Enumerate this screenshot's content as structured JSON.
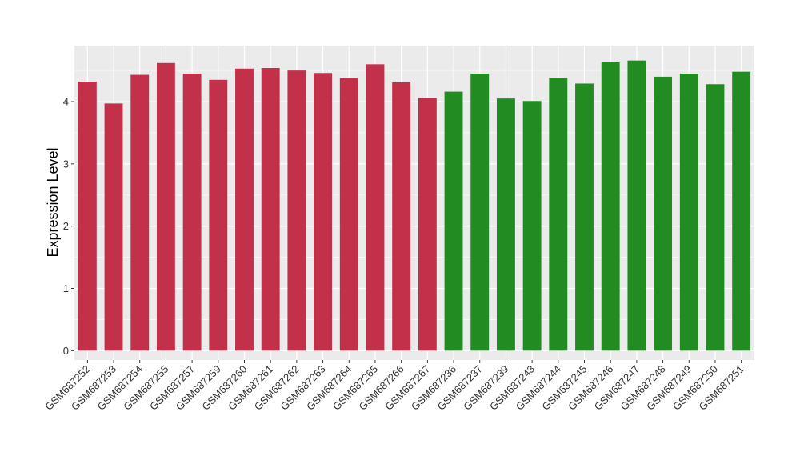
{
  "chart_data": {
    "type": "bar",
    "title": "",
    "xlabel": "",
    "ylabel": "Expression Level",
    "ylim": [
      -0.15,
      4.9
    ],
    "yticks": [
      0,
      1,
      2,
      3,
      4
    ],
    "grid": true,
    "legend": "none",
    "colors": {
      "group1": "#C3304A",
      "group2": "#228B22",
      "panel": "#EBEBEB",
      "grid": "#FFFFFF"
    },
    "categories": [
      "GSM687252",
      "GSM687253",
      "GSM687254",
      "GSM687255",
      "GSM687257",
      "GSM687259",
      "GSM687260",
      "GSM687261",
      "GSM687262",
      "GSM687263",
      "GSM687264",
      "GSM687265",
      "GSM687266",
      "GSM687267",
      "GSM687236",
      "GSM687237",
      "GSM687239",
      "GSM687243",
      "GSM687244",
      "GSM687245",
      "GSM687246",
      "GSM687247",
      "GSM687248",
      "GSM687249",
      "GSM687250",
      "GSM687251"
    ],
    "values": [
      4.32,
      3.97,
      4.43,
      4.62,
      4.45,
      4.35,
      4.53,
      4.54,
      4.5,
      4.46,
      4.38,
      4.6,
      4.31,
      4.06,
      4.16,
      4.45,
      4.05,
      4.01,
      4.38,
      4.29,
      4.63,
      4.66,
      4.4,
      4.45,
      4.28,
      4.48
    ],
    "groups": [
      1,
      1,
      1,
      1,
      1,
      1,
      1,
      1,
      1,
      1,
      1,
      1,
      1,
      1,
      2,
      2,
      2,
      2,
      2,
      2,
      2,
      2,
      2,
      2,
      2,
      2
    ]
  }
}
